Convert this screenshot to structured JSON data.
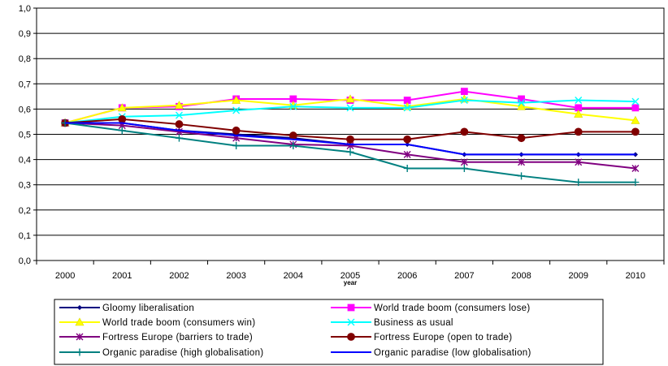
{
  "chart_data": {
    "type": "line",
    "xlabel": "year",
    "ylabel": "",
    "ylim": [
      0,
      1
    ],
    "yticks": [
      "0,0",
      "0,1",
      "0,2",
      "0,3",
      "0,4",
      "0,5",
      "0,6",
      "0,7",
      "0,8",
      "0,9",
      "1,0"
    ],
    "categories": [
      "2000",
      "2001",
      "2002",
      "2003",
      "2004",
      "2005",
      "2006",
      "2007",
      "2008",
      "2009",
      "2010"
    ],
    "grid": "horizontal",
    "legend_position": "bottom",
    "series": [
      {
        "name": "Gloomy liberalisation",
        "color": "#000080",
        "marker": "diamond",
        "values": [
          0.545,
          0.545,
          0.515,
          0.5,
          0.485,
          0.46,
          0.46,
          0.42,
          0.42,
          0.42,
          0.42
        ]
      },
      {
        "name": "World trade boom (consumers lose)",
        "color": "#ff00ff",
        "marker": "square",
        "values": [
          0.545,
          0.605,
          0.61,
          0.64,
          0.64,
          0.635,
          0.635,
          0.67,
          0.64,
          0.605,
          0.605
        ]
      },
      {
        "name": "World trade boom (consumers win)",
        "color": "#ffff00",
        "marker": "triangle",
        "values": [
          0.545,
          0.605,
          0.615,
          0.635,
          0.615,
          0.64,
          0.61,
          0.64,
          0.61,
          0.58,
          0.555
        ]
      },
      {
        "name": "Business as usual",
        "color": "#00ffff",
        "marker": "x",
        "values": [
          0.545,
          0.57,
          0.575,
          0.595,
          0.61,
          0.605,
          0.605,
          0.635,
          0.625,
          0.635,
          0.63
        ]
      },
      {
        "name": "Fortress Europe (barriers to trade)",
        "color": "#800080",
        "marker": "star",
        "values": [
          0.545,
          0.535,
          0.51,
          0.485,
          0.46,
          0.455,
          0.42,
          0.39,
          0.39,
          0.39,
          0.365
        ]
      },
      {
        "name": "Fortress Europe (open to trade)",
        "color": "#800000",
        "marker": "circle",
        "values": [
          0.545,
          0.56,
          0.54,
          0.515,
          0.495,
          0.48,
          0.48,
          0.51,
          0.485,
          0.51,
          0.51
        ]
      },
      {
        "name": "Organic paradise (high globalisation)",
        "color": "#008080",
        "marker": "plus",
        "values": [
          0.545,
          0.515,
          0.485,
          0.455,
          0.455,
          0.43,
          0.365,
          0.365,
          0.335,
          0.31,
          0.31
        ]
      },
      {
        "name": "Organic paradise (low globalisation)",
        "color": "#0000ff",
        "marker": "none",
        "values": [
          0.545,
          0.545,
          0.515,
          0.495,
          0.48,
          0.46,
          0.46,
          0.42,
          0.42,
          0.42,
          0.42
        ]
      }
    ]
  }
}
